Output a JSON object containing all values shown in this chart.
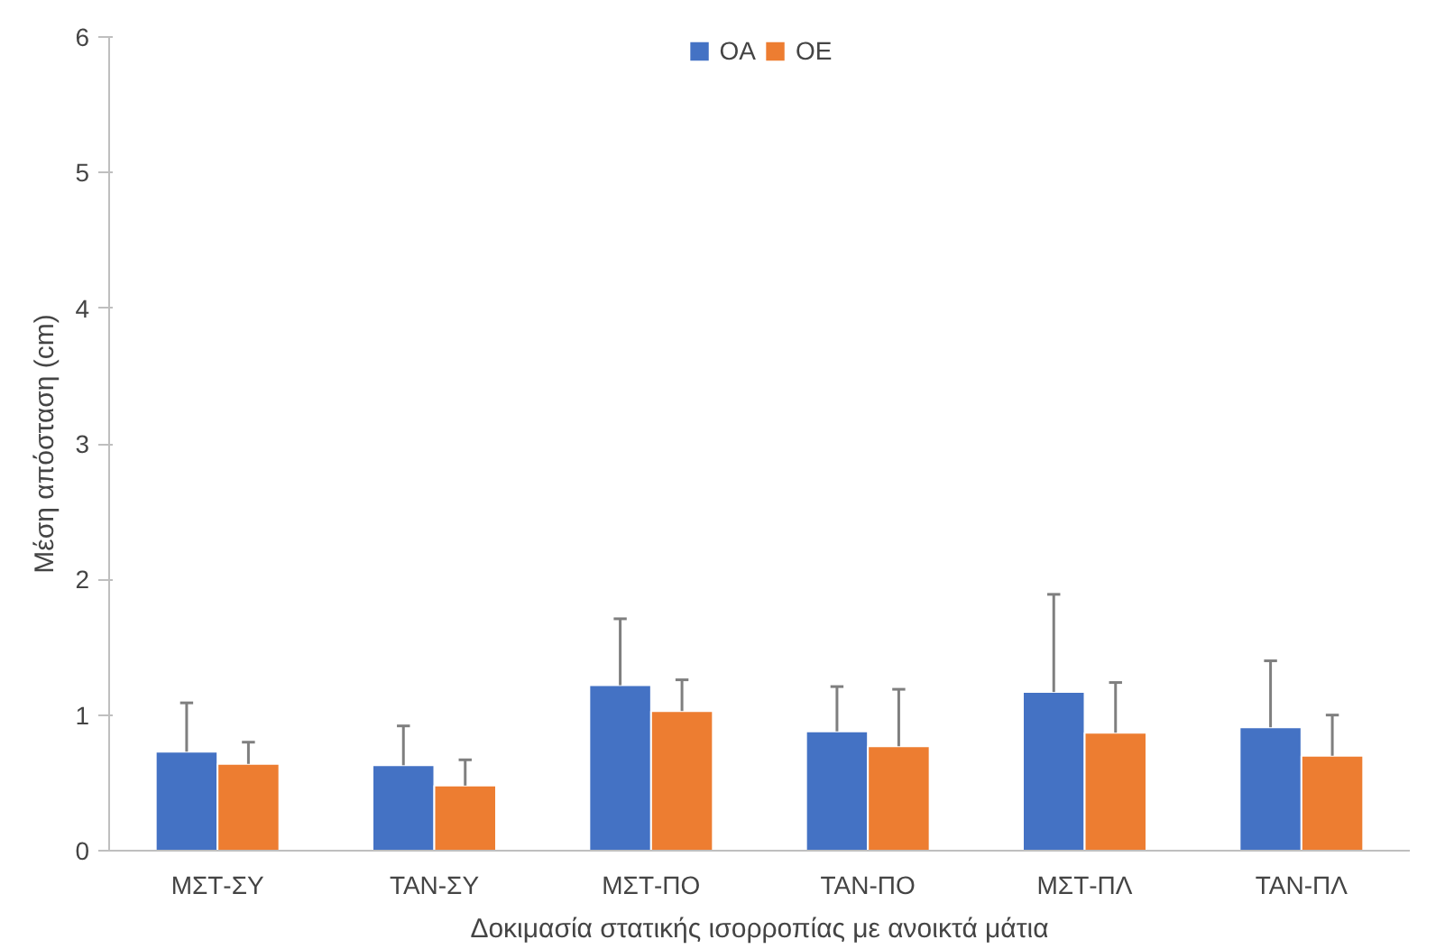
{
  "chart_data": {
    "type": "bar",
    "xlabel": "Δοκιμασία στατικής ισορροπίας με ανοικτά μάτια",
    "ylabel": "Μέση απόσταση (cm)",
    "categories": [
      "ΜΣΤ-ΣΥ",
      "ΤΑΝ-ΣΥ",
      "ΜΣΤ-ΠΟ",
      "ΤΑΝ-ΠΟ",
      "ΜΣΤ-ΠΛ",
      "ΤΑΝ-ΠΛ"
    ],
    "series": [
      {
        "name": "OA",
        "color": "#4472c4",
        "values": [
          0.73,
          0.63,
          1.22,
          0.88,
          1.17,
          0.91
        ],
        "errors": [
          [
            0.73,
            1.09
          ],
          [
            0.63,
            0.92
          ],
          [
            1.22,
            1.71
          ],
          [
            0.88,
            1.21
          ],
          [
            1.17,
            1.89
          ],
          [
            0.91,
            1.4
          ]
        ]
      },
      {
        "name": "OE",
        "color": "#ed7d31",
        "values": [
          0.64,
          0.48,
          1.03,
          0.77,
          0.87,
          0.7
        ],
        "errors": [
          [
            0.64,
            0.8
          ],
          [
            0.48,
            0.67
          ],
          [
            1.03,
            1.26
          ],
          [
            0.77,
            1.19
          ],
          [
            0.87,
            1.24
          ],
          [
            0.7,
            1.0
          ]
        ]
      }
    ],
    "ylim": [
      0,
      6
    ],
    "yticks": [
      0,
      1,
      2,
      3,
      4,
      5,
      6
    ],
    "grid": false,
    "legend": "top"
  }
}
